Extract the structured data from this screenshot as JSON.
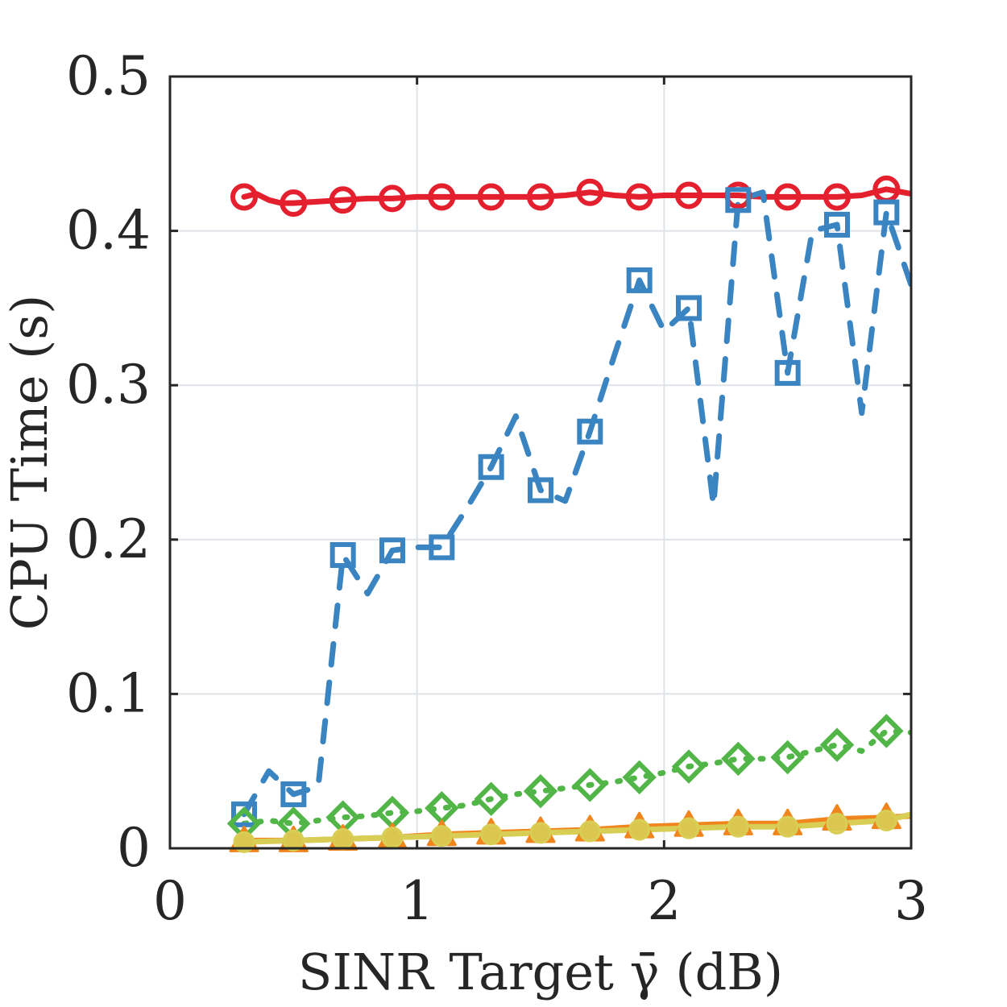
{
  "chart_data": {
    "type": "line",
    "title": "",
    "xlabel": "SINR Target γ̄ (dB)",
    "ylabel": "CPU Time (s)",
    "xlim": [
      0,
      3
    ],
    "ylim": [
      0,
      0.5
    ],
    "xticks": [
      0,
      1,
      2,
      3
    ],
    "xtick_labels": [
      "0",
      "1",
      "2",
      "3"
    ],
    "yticks": [
      0,
      0.1,
      0.2,
      0.3,
      0.4,
      0.5
    ],
    "ytick_labels": [
      "0",
      "0.1",
      "0.2",
      "0.3",
      "0.4",
      "0.5"
    ],
    "grid": true,
    "legend": "none",
    "series": [
      {
        "color": "#e5202e",
        "line_style": "solid",
        "marker": "circle",
        "line_x": [
          0.3,
          0.35,
          0.4,
          0.45,
          0.5,
          0.6,
          0.7,
          0.8,
          0.9,
          1.0,
          1.1,
          1.2,
          1.3,
          1.4,
          1.5,
          1.6,
          1.7,
          1.8,
          1.9,
          2.0,
          2.1,
          2.2,
          2.3,
          2.4,
          2.5,
          2.6,
          2.7,
          2.8,
          2.9,
          3.0
        ],
        "line_y": [
          0.422,
          0.424,
          0.42,
          0.418,
          0.418,
          0.419,
          0.42,
          0.421,
          0.421,
          0.422,
          0.422,
          0.422,
          0.422,
          0.422,
          0.422,
          0.423,
          0.425,
          0.423,
          0.422,
          0.423,
          0.423,
          0.423,
          0.423,
          0.422,
          0.422,
          0.422,
          0.422,
          0.423,
          0.427,
          0.424
        ],
        "x": [
          0.3,
          0.5,
          0.7,
          0.9,
          1.1,
          1.3,
          1.5,
          1.7,
          1.9,
          2.1,
          2.3,
          2.5,
          2.7,
          2.9
        ],
        "y": [
          0.422,
          0.418,
          0.42,
          0.421,
          0.422,
          0.422,
          0.422,
          0.425,
          0.422,
          0.423,
          0.423,
          0.422,
          0.422,
          0.427
        ]
      },
      {
        "color": "#3a84c1",
        "line_style": "dashed",
        "marker": "square",
        "line_x": [
          0.3,
          0.4,
          0.5,
          0.6,
          0.7,
          0.8,
          0.9,
          1.0,
          1.1,
          1.2,
          1.3,
          1.4,
          1.5,
          1.6,
          1.7,
          1.8,
          1.9,
          2.0,
          2.1,
          2.2,
          2.3,
          2.4,
          2.5,
          2.6,
          2.7,
          2.8,
          2.9,
          3.0
        ],
        "line_y": [
          0.022,
          0.05,
          0.035,
          0.04,
          0.19,
          0.165,
          0.193,
          0.195,
          0.195,
          0.22,
          0.247,
          0.28,
          0.232,
          0.225,
          0.27,
          0.32,
          0.368,
          0.335,
          0.35,
          0.222,
          0.42,
          0.425,
          0.308,
          0.4,
          0.404,
          0.282,
          0.412,
          0.365
        ],
        "x": [
          0.3,
          0.5,
          0.7,
          0.9,
          1.1,
          1.3,
          1.5,
          1.7,
          1.9,
          2.1,
          2.3,
          2.5,
          2.7,
          2.9
        ],
        "y": [
          0.022,
          0.035,
          0.19,
          0.193,
          0.195,
          0.247,
          0.232,
          0.27,
          0.368,
          0.35,
          0.42,
          0.308,
          0.404,
          0.412
        ]
      },
      {
        "color": "#52b548",
        "line_style": "dotted",
        "marker": "diamond",
        "line_x": [
          0.3,
          0.4,
          0.5,
          0.6,
          0.7,
          0.8,
          0.9,
          1.0,
          1.1,
          1.2,
          1.3,
          1.4,
          1.5,
          1.6,
          1.7,
          1.8,
          1.9,
          2.0,
          2.1,
          2.2,
          2.3,
          2.4,
          2.5,
          2.6,
          2.7,
          2.8,
          2.9,
          3.0
        ],
        "line_y": [
          0.016,
          0.018,
          0.016,
          0.018,
          0.02,
          0.021,
          0.023,
          0.024,
          0.026,
          0.028,
          0.032,
          0.035,
          0.037,
          0.039,
          0.041,
          0.043,
          0.046,
          0.049,
          0.053,
          0.055,
          0.058,
          0.058,
          0.059,
          0.063,
          0.067,
          0.063,
          0.076,
          0.075
        ],
        "x": [
          0.3,
          0.5,
          0.7,
          0.9,
          1.1,
          1.3,
          1.5,
          1.7,
          1.9,
          2.1,
          2.3,
          2.5,
          2.7,
          2.9
        ],
        "y": [
          0.016,
          0.016,
          0.02,
          0.023,
          0.026,
          0.032,
          0.037,
          0.041,
          0.046,
          0.053,
          0.058,
          0.059,
          0.067,
          0.076
        ]
      },
      {
        "color": "#f0851d",
        "line_style": "solid",
        "marker": "triangle",
        "line_x": [
          0.3,
          0.5,
          0.7,
          0.9,
          1.1,
          1.3,
          1.5,
          1.7,
          1.9,
          2.1,
          2.3,
          2.5,
          2.7,
          2.9,
          3.0
        ],
        "line_y": [
          0.005,
          0.005,
          0.006,
          0.007,
          0.009,
          0.01,
          0.011,
          0.012,
          0.014,
          0.015,
          0.016,
          0.016,
          0.019,
          0.02,
          0.021
        ],
        "x": [
          0.3,
          0.5,
          0.7,
          0.9,
          1.1,
          1.3,
          1.5,
          1.7,
          1.9,
          2.1,
          2.3,
          2.5,
          2.7,
          2.9
        ],
        "y": [
          0.005,
          0.005,
          0.006,
          0.007,
          0.009,
          0.01,
          0.011,
          0.012,
          0.014,
          0.015,
          0.016,
          0.016,
          0.019,
          0.02
        ]
      },
      {
        "color": "#d8ce55",
        "line_style": "solid",
        "marker": "circle-filled",
        "line_x": [
          0.3,
          0.5,
          0.7,
          0.9,
          1.1,
          1.3,
          1.5,
          1.7,
          1.9,
          2.1,
          2.3,
          2.5,
          2.7,
          2.9,
          3.0
        ],
        "line_y": [
          0.004,
          0.005,
          0.006,
          0.007,
          0.008,
          0.009,
          0.01,
          0.011,
          0.012,
          0.013,
          0.014,
          0.014,
          0.016,
          0.018,
          0.022
        ],
        "x": [
          0.3,
          0.5,
          0.7,
          0.9,
          1.1,
          1.3,
          1.5,
          1.7,
          1.9,
          2.1,
          2.3,
          2.5,
          2.7,
          2.9
        ],
        "y": [
          0.004,
          0.005,
          0.006,
          0.007,
          0.008,
          0.009,
          0.01,
          0.011,
          0.012,
          0.013,
          0.014,
          0.014,
          0.016,
          0.018
        ]
      }
    ]
  }
}
